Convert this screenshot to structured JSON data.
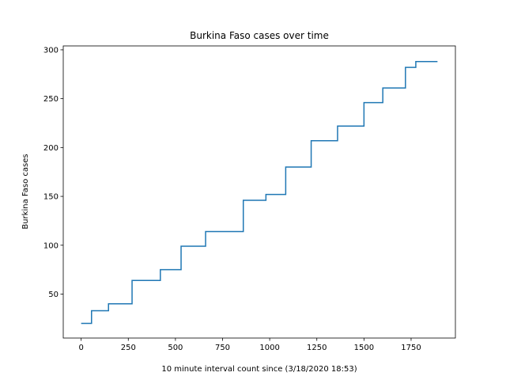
{
  "chart_data": {
    "type": "line",
    "title": "Burkina Faso cases over time",
    "xlabel": "10 minute interval count since (3/18/2020 18:53)",
    "ylabel": "Burkina Faso cases",
    "xlim": [
      -95,
      1985
    ],
    "ylim": [
      5,
      304
    ],
    "xticks": [
      0,
      250,
      500,
      750,
      1000,
      1250,
      1500,
      1750
    ],
    "yticks": [
      50,
      100,
      150,
      200,
      250,
      300
    ],
    "grid": false,
    "line_color": "#1f77b4",
    "step": "post",
    "series": [
      {
        "x": [
          0,
          55,
          145,
          270,
          420,
          530,
          660,
          860,
          980,
          1085,
          1220,
          1360,
          1500,
          1600,
          1720,
          1775,
          1890
        ],
        "y": [
          20,
          33,
          40,
          64,
          75,
          99,
          114,
          146,
          152,
          180,
          207,
          222,
          246,
          261,
          282,
          288,
          288
        ]
      }
    ]
  }
}
